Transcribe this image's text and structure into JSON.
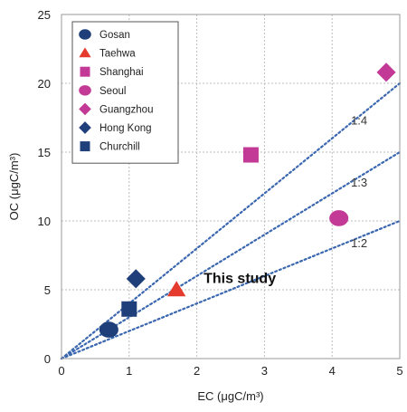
{
  "chart_data": {
    "type": "scatter",
    "xlabel": "EC (μgC/m³)",
    "ylabel": "OC (μgC/m³)",
    "xlim": [
      0,
      5
    ],
    "ylim": [
      0,
      25
    ],
    "xticks": [
      "0",
      "1",
      "2",
      "3",
      "4",
      "5"
    ],
    "yticks": [
      "0",
      "5",
      "10",
      "15",
      "20",
      "25"
    ],
    "grid": true,
    "legend_position": "top-left",
    "series": [
      {
        "name": "Gosan",
        "marker": "circle",
        "color": "#1f3f7a",
        "x": 0.7,
        "y": 2.1
      },
      {
        "name": "Taehwa",
        "marker": "triangle",
        "color": "#e53a2e",
        "x": 1.7,
        "y": 5.0
      },
      {
        "name": "Shanghai",
        "marker": "square",
        "color": "#c23a96",
        "x": 2.8,
        "y": 14.8
      },
      {
        "name": "Seoul",
        "marker": "circle",
        "color": "#c23a96",
        "x": 4.1,
        "y": 10.2
      },
      {
        "name": "Guangzhou",
        "marker": "diamond",
        "color": "#c23a96",
        "x": 4.8,
        "y": 20.8
      },
      {
        "name": "Hong Kong",
        "marker": "diamond",
        "color": "#1f3f7a",
        "x": 1.1,
        "y": 5.8
      },
      {
        "name": "Churchill",
        "marker": "square",
        "color": "#1f3f7a",
        "x": 1.0,
        "y": 3.6
      }
    ],
    "reference_lines": [
      {
        "label": "1:4",
        "slope": 4,
        "label_at": [
          4.4,
          17.0
        ]
      },
      {
        "label": "1:3",
        "slope": 3,
        "label_at": [
          4.4,
          12.5
        ]
      },
      {
        "label": "1:2",
        "slope": 2,
        "label_at": [
          4.4,
          8.1
        ]
      }
    ],
    "annotations": [
      {
        "text": "This study",
        "x": 2.1,
        "y": 5.5
      }
    ]
  }
}
